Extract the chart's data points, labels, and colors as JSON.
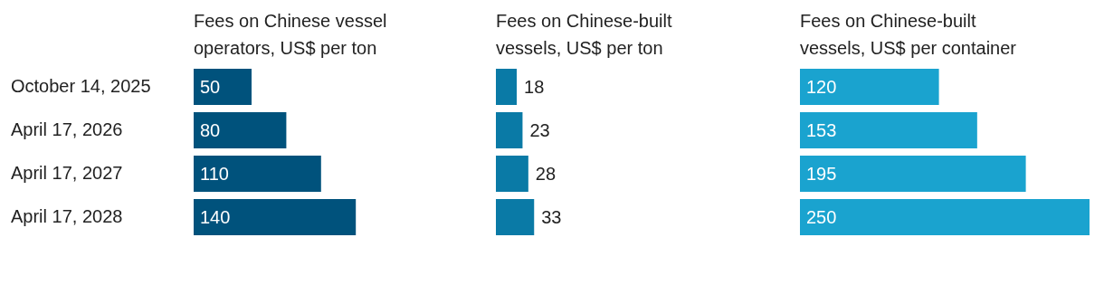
{
  "chart_data": [
    {
      "type": "bar",
      "orientation": "horizontal",
      "title": "Fees on Chinese vessel operators, US$ per ton",
      "categories": [
        "October 14, 2025",
        "April 17, 2026",
        "April 17, 2027",
        "April 17, 2028"
      ],
      "values": [
        50,
        80,
        110,
        140
      ],
      "color": "#00527c",
      "data_labels": true,
      "tick_labels": "y"
    },
    {
      "type": "bar",
      "orientation": "horizontal",
      "title": "Fees on Chinese-built vessels, US$ per ton",
      "categories": [
        null,
        null,
        null,
        null
      ],
      "values": [
        18,
        23,
        28,
        33
      ],
      "color": "#0a7aa6",
      "data_labels": true,
      "tick_labels": false
    },
    {
      "type": "bar",
      "orientation": "horizontal",
      "title": "Fees on Chinese-built vessels, US$ per container",
      "categories": [
        null,
        null,
        null,
        null
      ],
      "values": [
        120,
        153,
        195,
        250
      ],
      "color": "#1aa3cf",
      "data_labels": true,
      "tick_labels": false
    }
  ]
}
